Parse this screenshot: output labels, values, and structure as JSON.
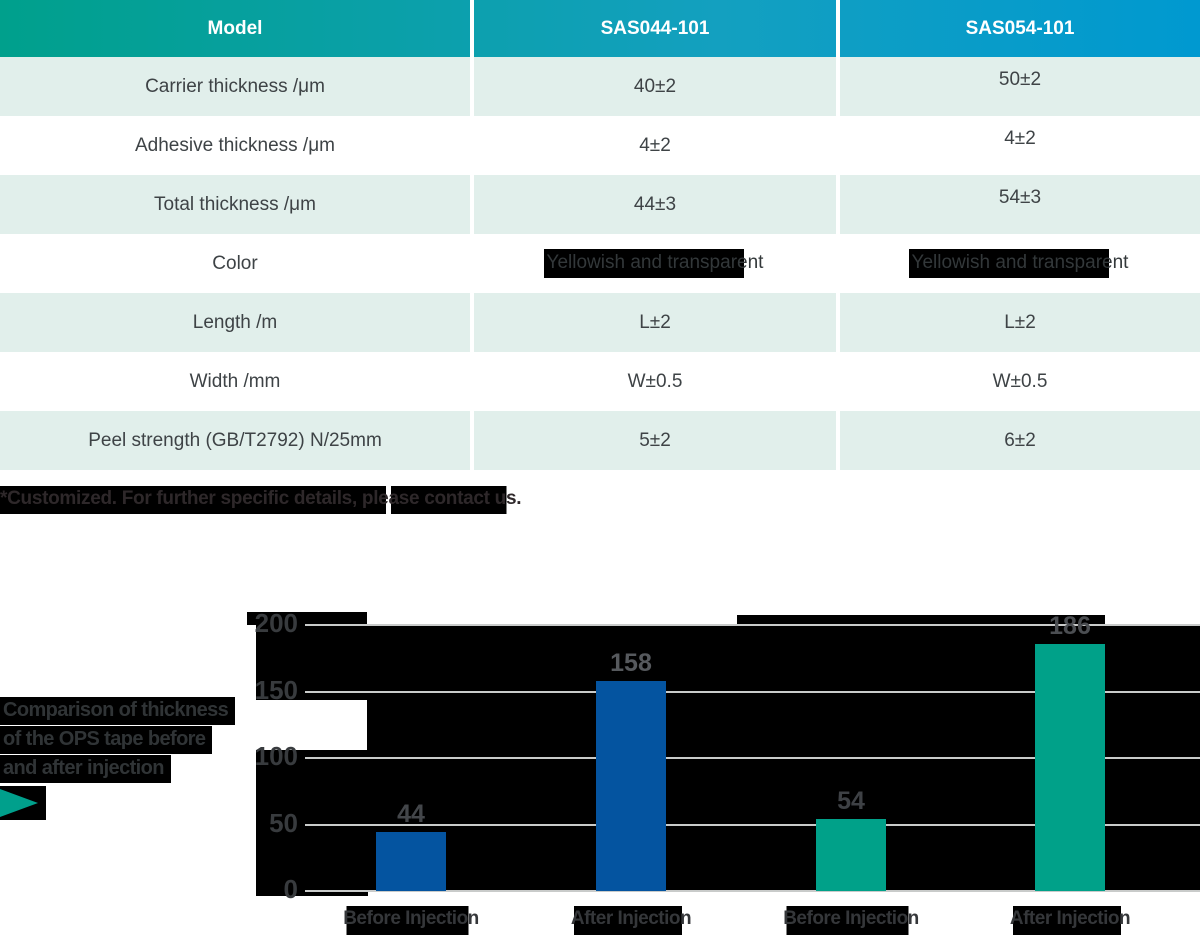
{
  "table": {
    "headers": [
      "Model",
      "SAS044-101",
      "SAS054-101"
    ],
    "rows": [
      {
        "label": "Carrier thickness /μm",
        "values": [
          "40±2",
          "50±2"
        ],
        "redacted": false
      },
      {
        "label": "Adhesive thickness /μm",
        "values": [
          "4±2",
          "4±2"
        ],
        "redacted": false
      },
      {
        "label": "Total thickness /μm",
        "values": [
          "44±3",
          "54±3"
        ],
        "redacted": false
      },
      {
        "label": "Color",
        "values": [
          "Yellowish and transparent",
          "Yellowish and transparent"
        ],
        "redacted": true
      },
      {
        "label": "Length /m",
        "values": [
          "L±2",
          "L±2"
        ],
        "redacted": false
      },
      {
        "label": "Width /mm",
        "values": [
          "W±0.5",
          "W±0.5"
        ],
        "redacted": false
      },
      {
        "label": "Peel strength (GB/T2792) N/25mm",
        "values": [
          "5±2",
          "6±2"
        ],
        "redacted": false
      }
    ]
  },
  "footnote": "*Customized. For further specific details, please contact us.",
  "chart": {
    "title_lines": [
      "Comparison of thickness",
      "of the OPS tape before",
      "and after injection"
    ],
    "chart_data": {
      "type": "bar",
      "title": "Comparison of thickness of the OPS tape before and after injection",
      "categories": [
        "Before Injection",
        "After Injection",
        "Before Injection",
        "After Injection"
      ],
      "values": [
        44,
        158,
        54,
        186
      ],
      "bar_colors": [
        "#0454a0",
        "#0454a0",
        "#00a189",
        "#00a189"
      ],
      "value_label_colors": [
        "#43464a",
        "#56595d",
        "#3e4145",
        "#4b4e52"
      ],
      "series": [
        {
          "name": "SAS044-101",
          "color": "#0454a0",
          "category_indexes": [
            0,
            1
          ],
          "values": [
            44,
            158
          ]
        },
        {
          "name": "SAS054-101",
          "color": "#00a189",
          "category_indexes": [
            2,
            3
          ],
          "values": [
            54,
            186
          ]
        }
      ],
      "xlabel": "",
      "ylabel": "",
      "ylim": [
        0,
        200
      ],
      "yticks": [
        200,
        150,
        100,
        50,
        0
      ],
      "grid": true,
      "legend": "none"
    }
  },
  "colors": {
    "header_gradient_left": "#00a08c",
    "header_gradient_right": "#0099d0",
    "header_text": "#ffffff",
    "row_shaded_bg": "#e1efeb",
    "row_plain_bg": "#ffffff",
    "body_text": "#3e4346",
    "bar_blue": "#0454a0",
    "bar_teal": "#00a189",
    "gridline": "#c9cbca",
    "redaction_box": "#000000",
    "play_icon_teal": "#00a08c"
  }
}
